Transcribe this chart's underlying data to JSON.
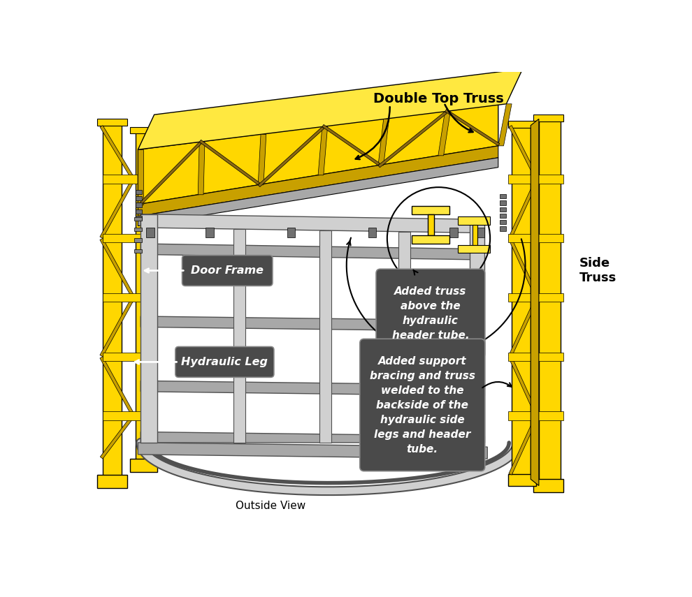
{
  "bg_color": "#ffffff",
  "yellow": "#FFD700",
  "yellow_light": "#FFE840",
  "yellow_dark": "#C8A000",
  "yellow_shadow": "#8B6914",
  "gray_light": "#D0D0D0",
  "gray_mid": "#A8A8A8",
  "gray_dark": "#707070",
  "gray_shadow": "#505050",
  "box_bg": "#4a4a4a",
  "box_text": "#ffffff",
  "labels": {
    "double_top_truss": "Double Top Truss",
    "side_truss": "Side\nTruss",
    "outside_view": "Outside View",
    "door_frame": "Door Frame",
    "hydraulic_leg": "Hydraulic Leg",
    "added_truss": "Added truss\nabove the\nhydraulic\nheader tube.",
    "added_support": "Added support\nbracing and truss\nwelded to the\nbackside of the\nhydraulic side\nlegs and header\ntube."
  }
}
